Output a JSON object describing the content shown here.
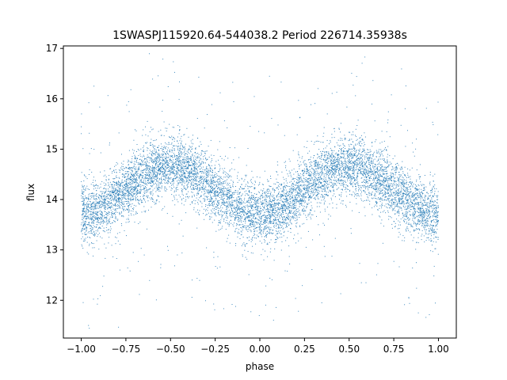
{
  "chart_data": {
    "type": "scatter",
    "title": "1SWASPJ115920.64-544038.2 Period 226714.35938s",
    "xlabel": "phase",
    "ylabel": "flux",
    "xlim": [
      -1.1,
      1.1
    ],
    "ylim": [
      11.25,
      17.05
    ],
    "xticks": [
      -1.0,
      -0.75,
      -0.5,
      -0.25,
      0.0,
      0.25,
      0.5,
      0.75,
      1.0
    ],
    "xtick_labels": [
      "−1.00",
      "−0.75",
      "−0.50",
      "−0.25",
      "0.00",
      "0.25",
      "0.50",
      "0.75",
      "1.00"
    ],
    "yticks": [
      12,
      13,
      14,
      15,
      16,
      17
    ],
    "ytick_labels": [
      "12",
      "13",
      "14",
      "15",
      "16",
      "17"
    ],
    "grid": false,
    "point_color": "#1f77b4",
    "model": {
      "period_in_phase": 1.0,
      "max_phase": 0.5,
      "min_phase": 0.0,
      "mean_flux": 14.2,
      "amplitude": 0.47,
      "scatter_sigma": 0.3,
      "points_per_unit_phase": 4500
    }
  }
}
